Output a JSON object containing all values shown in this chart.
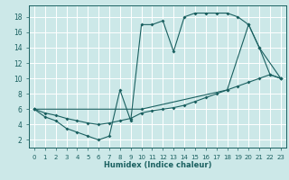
{
  "xlabel": "Humidex (Indice chaleur)",
  "bg_color": "#cce8e8",
  "line_color": "#1a6060",
  "grid_color": "#ffffff",
  "xlim": [
    -0.5,
    23.5
  ],
  "ylim": [
    1,
    19.5
  ],
  "xticks": [
    0,
    1,
    2,
    3,
    4,
    5,
    6,
    7,
    8,
    9,
    10,
    11,
    12,
    13,
    14,
    15,
    16,
    17,
    18,
    19,
    20,
    21,
    22,
    23
  ],
  "yticks": [
    2,
    4,
    6,
    8,
    10,
    12,
    14,
    16,
    18
  ],
  "line1_x": [
    0,
    1,
    2,
    3,
    4,
    5,
    6,
    7,
    8,
    9,
    10,
    11,
    12,
    13,
    14,
    15,
    16,
    17,
    18,
    19,
    20,
    21,
    22,
    23
  ],
  "line1_y": [
    6,
    5,
    4.5,
    3.5,
    3.0,
    2.5,
    2.0,
    2.5,
    8.5,
    4.5,
    17.0,
    17.0,
    17.5,
    13.5,
    18.0,
    18.5,
    18.5,
    18.5,
    18.5,
    18.0,
    17.0,
    14.0,
    10.5,
    10.0
  ],
  "line2_x": [
    0,
    1,
    2,
    3,
    4,
    5,
    6,
    7,
    8,
    9,
    10,
    11,
    12,
    13,
    14,
    15,
    16,
    17,
    18,
    19,
    20,
    21,
    22,
    23
  ],
  "line2_y": [
    6.0,
    5.5,
    5.2,
    4.8,
    4.5,
    4.2,
    4.0,
    4.2,
    4.5,
    4.8,
    5.5,
    5.8,
    6.0,
    6.2,
    6.5,
    7.0,
    7.5,
    8.0,
    8.5,
    9.0,
    9.5,
    10.0,
    10.5,
    10.0
  ],
  "line3_x": [
    0,
    10,
    18,
    20,
    21,
    23
  ],
  "line3_y": [
    6.0,
    6.0,
    8.5,
    17.0,
    14.0,
    10.0
  ]
}
